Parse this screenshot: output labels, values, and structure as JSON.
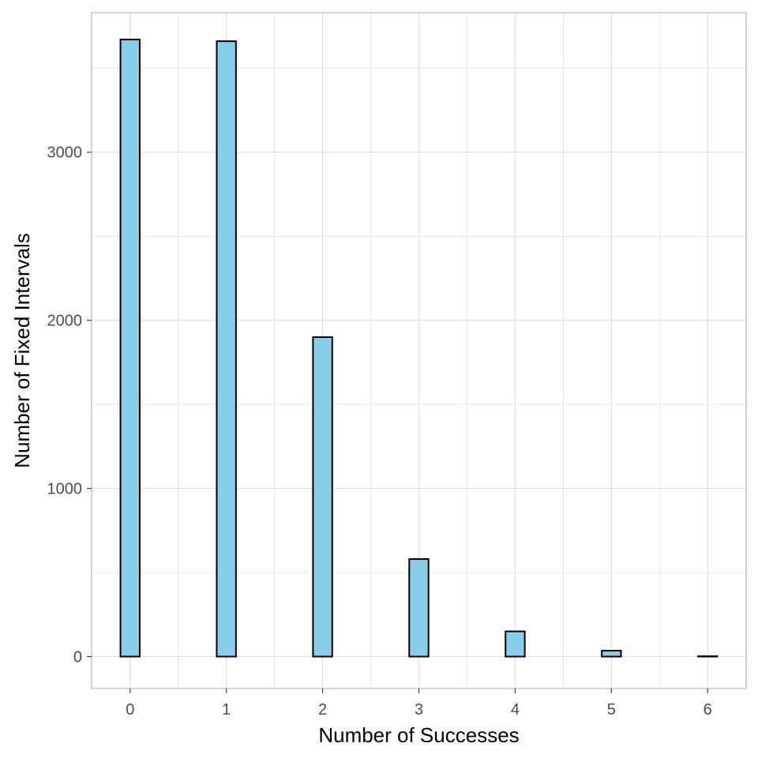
{
  "chart_data": {
    "type": "bar",
    "title": "",
    "xlabel": "Number of Successes",
    "ylabel": "Number of Fixed Intervals",
    "x_ticks": [
      "0",
      "1",
      "2",
      "3",
      "4",
      "5",
      "6"
    ],
    "y_ticks": [
      "0",
      "1000",
      "2000",
      "3000"
    ],
    "xlim": [
      -0.4,
      6.4
    ],
    "ylim": [
      -190,
      3830
    ],
    "bin_width": 0.2,
    "bin_start": -0.1,
    "counts": [
      3670,
      0,
      0,
      0,
      0,
      3660,
      0,
      0,
      0,
      0,
      1900,
      0,
      0,
      0,
      0,
      580,
      0,
      0,
      0,
      0,
      150,
      0,
      0,
      0,
      0,
      35,
      0,
      0,
      0,
      0,
      2,
      0
    ],
    "grid": true,
    "legend": "none",
    "bar_fill": "#87CEEB",
    "bar_stroke": "#000000",
    "grid_color": "#dedede",
    "panel_border": "#b3b3b3"
  }
}
